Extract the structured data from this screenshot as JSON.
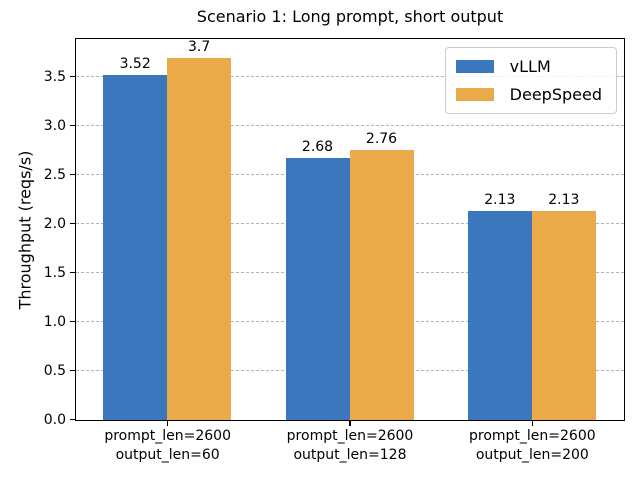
{
  "chart_data": {
    "type": "bar",
    "title": "Scenario 1: Long prompt, short output",
    "xlabel": "",
    "ylabel": "Throughput (reqs/s)",
    "categories": [
      [
        "prompt_len=2600",
        "output_len=60"
      ],
      [
        "prompt_len=2600",
        "output_len=128"
      ],
      [
        "prompt_len=2600",
        "output_len=200"
      ]
    ],
    "series": [
      {
        "name": "vLLM",
        "color": "#3a77bd",
        "values": [
          3.52,
          2.68,
          2.13
        ]
      },
      {
        "name": "DeepSpeed",
        "color": "#ebaa49",
        "values": [
          3.7,
          2.76,
          2.13
        ]
      }
    ],
    "bar_labels": [
      [
        "3.52",
        "2.68",
        "2.13"
      ],
      [
        "3.7",
        "2.76",
        "2.13"
      ]
    ],
    "ylim": [
      0,
      3.88
    ],
    "yticks": [
      0.0,
      0.5,
      1.0,
      1.5,
      2.0,
      2.5,
      3.0,
      3.5
    ],
    "ytick_labels": [
      "0.0",
      "0.5",
      "1.0",
      "1.5",
      "2.0",
      "2.5",
      "3.0",
      "3.5"
    ],
    "grid": {
      "axis": "y",
      "style": "dashed",
      "color": "#b4b4b4"
    },
    "legend_position": "upper right",
    "colors": {
      "background": "#ffffff",
      "spine": "#000000",
      "text": "#000000"
    }
  }
}
